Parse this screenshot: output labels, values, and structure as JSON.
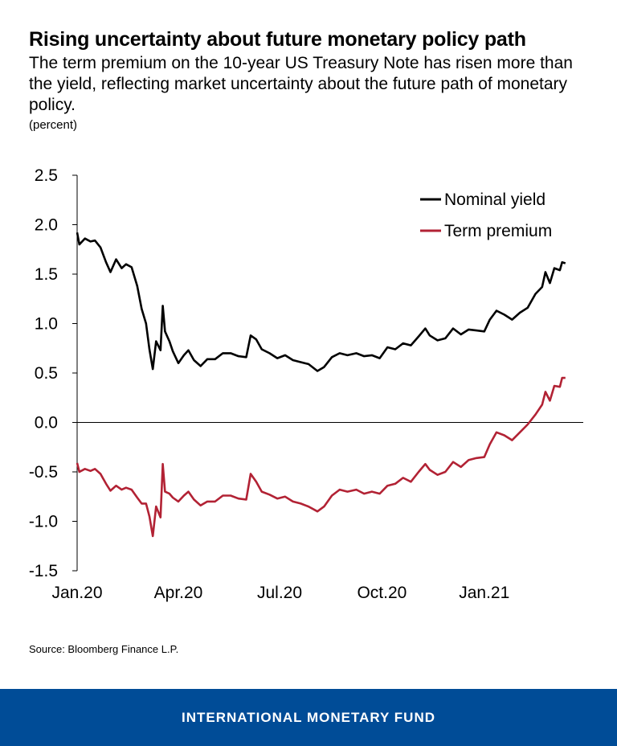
{
  "header": {
    "title": "Rising uncertainty about future monetary policy path",
    "subtitle": "The term premium on the 10-year US Treasury Note has risen more than the yield, reflecting market uncertainty about the future path of monetary policy.",
    "units": "(percent)"
  },
  "source": "Source: Bloomberg Finance L.P.",
  "footer": {
    "org": "INTERNATIONAL MONETARY FUND",
    "background": "#004c97"
  },
  "chart_data": {
    "type": "line",
    "ylim": [
      -1.5,
      2.5
    ],
    "yticks": [
      2.5,
      2.0,
      1.5,
      1.0,
      0.5,
      0.0,
      -0.5,
      -1.0,
      -1.5
    ],
    "ytick_labels": [
      "2.5",
      "2.0",
      "1.5",
      "1.0",
      "0.5",
      "0.0",
      "-0.5",
      "-1.0",
      "-1.5"
    ],
    "xlim": [
      "2020-01-01",
      "2021-03-31"
    ],
    "xticks": [
      "2020-01-01",
      "2020-04-01",
      "2020-07-01",
      "2020-10-01",
      "2021-01-01"
    ],
    "xtick_labels": [
      "Jan.20",
      "Apr.20",
      "Jul.20",
      "Oct.20",
      "Jan.21"
    ],
    "legend_position": "top-right",
    "series": [
      {
        "name": "Nominal yield",
        "color": "#000000",
        "points": [
          [
            "2020-01-01",
            1.92
          ],
          [
            "2020-01-03",
            1.8
          ],
          [
            "2020-01-08",
            1.86
          ],
          [
            "2020-01-13",
            1.83
          ],
          [
            "2020-01-17",
            1.84
          ],
          [
            "2020-01-22",
            1.77
          ],
          [
            "2020-01-27",
            1.62
          ],
          [
            "2020-01-31",
            1.52
          ],
          [
            "2020-02-05",
            1.65
          ],
          [
            "2020-02-10",
            1.56
          ],
          [
            "2020-02-14",
            1.6
          ],
          [
            "2020-02-19",
            1.57
          ],
          [
            "2020-02-24",
            1.38
          ],
          [
            "2020-02-28",
            1.15
          ],
          [
            "2020-03-03",
            1.0
          ],
          [
            "2020-03-06",
            0.74
          ],
          [
            "2020-03-09",
            0.54
          ],
          [
            "2020-03-12",
            0.82
          ],
          [
            "2020-03-16",
            0.73
          ],
          [
            "2020-03-18",
            1.18
          ],
          [
            "2020-03-20",
            0.92
          ],
          [
            "2020-03-24",
            0.82
          ],
          [
            "2020-03-27",
            0.72
          ],
          [
            "2020-04-01",
            0.6
          ],
          [
            "2020-04-06",
            0.68
          ],
          [
            "2020-04-10",
            0.73
          ],
          [
            "2020-04-15",
            0.63
          ],
          [
            "2020-04-21",
            0.57
          ],
          [
            "2020-04-27",
            0.64
          ],
          [
            "2020-05-04",
            0.64
          ],
          [
            "2020-05-11",
            0.7
          ],
          [
            "2020-05-18",
            0.7
          ],
          [
            "2020-05-25",
            0.67
          ],
          [
            "2020-06-01",
            0.66
          ],
          [
            "2020-06-05",
            0.88
          ],
          [
            "2020-06-10",
            0.84
          ],
          [
            "2020-06-15",
            0.74
          ],
          [
            "2020-06-22",
            0.7
          ],
          [
            "2020-06-29",
            0.65
          ],
          [
            "2020-07-06",
            0.68
          ],
          [
            "2020-07-13",
            0.63
          ],
          [
            "2020-07-20",
            0.61
          ],
          [
            "2020-07-27",
            0.59
          ],
          [
            "2020-08-04",
            0.52
          ],
          [
            "2020-08-10",
            0.56
          ],
          [
            "2020-08-17",
            0.66
          ],
          [
            "2020-08-24",
            0.7
          ],
          [
            "2020-08-31",
            0.68
          ],
          [
            "2020-09-08",
            0.7
          ],
          [
            "2020-09-15",
            0.67
          ],
          [
            "2020-09-22",
            0.68
          ],
          [
            "2020-09-29",
            0.65
          ],
          [
            "2020-10-06",
            0.76
          ],
          [
            "2020-10-13",
            0.74
          ],
          [
            "2020-10-20",
            0.8
          ],
          [
            "2020-10-27",
            0.78
          ],
          [
            "2020-11-03",
            0.87
          ],
          [
            "2020-11-09",
            0.95
          ],
          [
            "2020-11-13",
            0.88
          ],
          [
            "2020-11-20",
            0.83
          ],
          [
            "2020-11-27",
            0.85
          ],
          [
            "2020-12-04",
            0.95
          ],
          [
            "2020-12-11",
            0.89
          ],
          [
            "2020-12-18",
            0.94
          ],
          [
            "2020-12-25",
            0.93
          ],
          [
            "2021-01-01",
            0.92
          ],
          [
            "2021-01-06",
            1.04
          ],
          [
            "2021-01-12",
            1.13
          ],
          [
            "2021-01-19",
            1.09
          ],
          [
            "2021-01-26",
            1.04
          ],
          [
            "2021-02-02",
            1.11
          ],
          [
            "2021-02-09",
            1.16
          ],
          [
            "2021-02-16",
            1.3
          ],
          [
            "2021-02-22",
            1.37
          ],
          [
            "2021-02-25",
            1.52
          ],
          [
            "2021-03-01",
            1.41
          ],
          [
            "2021-03-05",
            1.56
          ],
          [
            "2021-03-10",
            1.54
          ],
          [
            "2021-03-12",
            1.62
          ],
          [
            "2021-03-15",
            1.61
          ]
        ]
      },
      {
        "name": "Term premium",
        "color": "#b22234",
        "points": [
          [
            "2020-01-01",
            -0.41
          ],
          [
            "2020-01-03",
            -0.5
          ],
          [
            "2020-01-08",
            -0.47
          ],
          [
            "2020-01-13",
            -0.49
          ],
          [
            "2020-01-17",
            -0.47
          ],
          [
            "2020-01-22",
            -0.52
          ],
          [
            "2020-01-27",
            -0.62
          ],
          [
            "2020-01-31",
            -0.69
          ],
          [
            "2020-02-05",
            -0.64
          ],
          [
            "2020-02-10",
            -0.68
          ],
          [
            "2020-02-14",
            -0.66
          ],
          [
            "2020-02-19",
            -0.68
          ],
          [
            "2020-02-24",
            -0.76
          ],
          [
            "2020-02-28",
            -0.82
          ],
          [
            "2020-03-03",
            -0.82
          ],
          [
            "2020-03-06",
            -0.95
          ],
          [
            "2020-03-09",
            -1.15
          ],
          [
            "2020-03-12",
            -0.85
          ],
          [
            "2020-03-16",
            -0.96
          ],
          [
            "2020-03-18",
            -0.42
          ],
          [
            "2020-03-20",
            -0.7
          ],
          [
            "2020-03-24",
            -0.72
          ],
          [
            "2020-03-27",
            -0.76
          ],
          [
            "2020-04-01",
            -0.8
          ],
          [
            "2020-04-06",
            -0.74
          ],
          [
            "2020-04-10",
            -0.7
          ],
          [
            "2020-04-15",
            -0.78
          ],
          [
            "2020-04-21",
            -0.84
          ],
          [
            "2020-04-27",
            -0.8
          ],
          [
            "2020-05-04",
            -0.8
          ],
          [
            "2020-05-11",
            -0.74
          ],
          [
            "2020-05-18",
            -0.74
          ],
          [
            "2020-05-25",
            -0.77
          ],
          [
            "2020-06-01",
            -0.78
          ],
          [
            "2020-06-05",
            -0.52
          ],
          [
            "2020-06-10",
            -0.6
          ],
          [
            "2020-06-15",
            -0.7
          ],
          [
            "2020-06-22",
            -0.73
          ],
          [
            "2020-06-29",
            -0.77
          ],
          [
            "2020-07-06",
            -0.75
          ],
          [
            "2020-07-13",
            -0.8
          ],
          [
            "2020-07-20",
            -0.82
          ],
          [
            "2020-07-27",
            -0.85
          ],
          [
            "2020-08-04",
            -0.9
          ],
          [
            "2020-08-10",
            -0.85
          ],
          [
            "2020-08-17",
            -0.74
          ],
          [
            "2020-08-24",
            -0.68
          ],
          [
            "2020-08-31",
            -0.7
          ],
          [
            "2020-09-08",
            -0.68
          ],
          [
            "2020-09-15",
            -0.72
          ],
          [
            "2020-09-22",
            -0.7
          ],
          [
            "2020-09-29",
            -0.72
          ],
          [
            "2020-10-06",
            -0.64
          ],
          [
            "2020-10-13",
            -0.62
          ],
          [
            "2020-10-20",
            -0.56
          ],
          [
            "2020-10-27",
            -0.6
          ],
          [
            "2020-11-03",
            -0.5
          ],
          [
            "2020-11-09",
            -0.42
          ],
          [
            "2020-11-13",
            -0.48
          ],
          [
            "2020-11-20",
            -0.53
          ],
          [
            "2020-11-27",
            -0.5
          ],
          [
            "2020-12-04",
            -0.4
          ],
          [
            "2020-12-11",
            -0.45
          ],
          [
            "2020-12-18",
            -0.38
          ],
          [
            "2020-12-25",
            -0.36
          ],
          [
            "2021-01-01",
            -0.35
          ],
          [
            "2021-01-06",
            -0.22
          ],
          [
            "2021-01-12",
            -0.1
          ],
          [
            "2021-01-19",
            -0.13
          ],
          [
            "2021-01-26",
            -0.18
          ],
          [
            "2021-02-02",
            -0.1
          ],
          [
            "2021-02-09",
            -0.02
          ],
          [
            "2021-02-16",
            0.08
          ],
          [
            "2021-02-22",
            0.18
          ],
          [
            "2021-02-25",
            0.31
          ],
          [
            "2021-03-01",
            0.22
          ],
          [
            "2021-03-05",
            0.37
          ],
          [
            "2021-03-10",
            0.36
          ],
          [
            "2021-03-12",
            0.45
          ],
          [
            "2021-03-15",
            0.45
          ]
        ]
      }
    ]
  }
}
